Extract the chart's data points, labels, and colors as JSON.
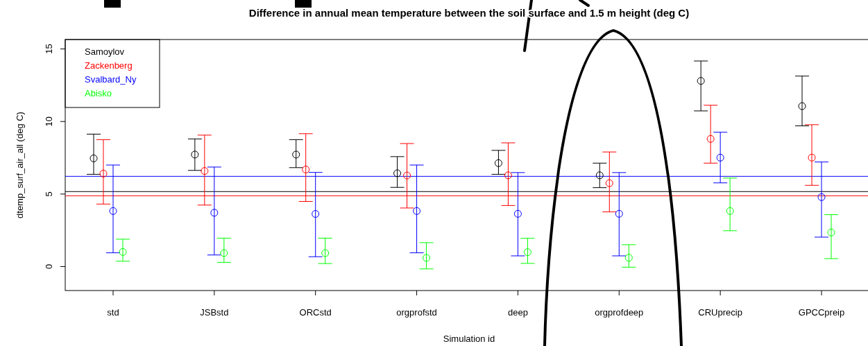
{
  "chart_data": {
    "type": "scatter",
    "title": "Difference in annual mean temperature between the soil surface and 1.5 m height (deg C)",
    "xlabel": "Simulation id",
    "ylabel": "dtemp_surf_air_all (deg C)",
    "categories": [
      "std",
      "JSBstd",
      "ORCstd",
      "orgprofstd",
      "deep",
      "orgprofdeep",
      "CRUprecip",
      "GPCCpreip"
    ],
    "ylim": [
      -1.65,
      15.65
    ],
    "yticks": [
      0,
      5,
      10,
      15
    ],
    "grid": false,
    "legend": "top left",
    "marker": "circle",
    "series": [
      {
        "name": "Samoylov",
        "color": "#000000",
        "values": [
          7.46,
          7.72,
          7.72,
          6.43,
          7.13,
          6.29,
          12.8,
          11.06
        ],
        "errors": [
          [
            6.36,
            9.13
          ],
          [
            6.63,
            8.8
          ],
          [
            6.82,
            8.75
          ],
          [
            5.46,
            7.58
          ],
          [
            6.36,
            8.01
          ],
          [
            5.44,
            7.13
          ],
          [
            10.73,
            14.17
          ],
          [
            9.7,
            13.13
          ]
        ]
      },
      {
        "name": "Zackenberg",
        "color": "#ff0000",
        "values": [
          6.41,
          6.59,
          6.69,
          6.28,
          6.29,
          5.75,
          8.8,
          7.51
        ],
        "errors": [
          [
            4.31,
            8.75
          ],
          [
            4.24,
            9.06
          ],
          [
            4.49,
            9.16
          ],
          [
            4.04,
            8.48
          ],
          [
            4.21,
            8.53
          ],
          [
            3.77,
            7.9
          ],
          [
            7.13,
            11.12
          ],
          [
            5.6,
            9.78
          ]
        ]
      },
      {
        "name": "Svalbard_Ny",
        "color": "#0000ff",
        "values": [
          3.83,
          3.71,
          3.63,
          3.83,
          3.64,
          3.64,
          7.51,
          4.79
        ],
        "errors": [
          [
            0.95,
            7.0
          ],
          [
            0.8,
            6.86
          ],
          [
            0.68,
            6.49
          ],
          [
            0.95,
            7.0
          ],
          [
            0.74,
            6.48
          ],
          [
            0.74,
            6.48
          ],
          [
            5.77,
            9.26
          ],
          [
            2.03,
            7.21
          ]
        ]
      },
      {
        "name": "Abisko",
        "color": "#00ff00",
        "values": [
          1.01,
          0.93,
          0.93,
          0.6,
          0.99,
          0.61,
          3.83,
          2.35
        ],
        "errors": [
          [
            0.37,
            1.89
          ],
          [
            0.29,
            1.96
          ],
          [
            0.21,
            1.96
          ],
          [
            -0.16,
            1.65
          ],
          [
            0.22,
            1.95
          ],
          [
            -0.04,
            1.51
          ],
          [
            2.47,
            6.1
          ],
          [
            0.55,
            3.58
          ]
        ]
      }
    ],
    "ref_lines": [
      {
        "axis": "y",
        "value": 6.22,
        "color": "#0000ff"
      },
      {
        "axis": "y",
        "value": 5.17,
        "color": "#000000"
      },
      {
        "axis": "y",
        "value": 4.88,
        "color": "#ff0000"
      }
    ]
  }
}
